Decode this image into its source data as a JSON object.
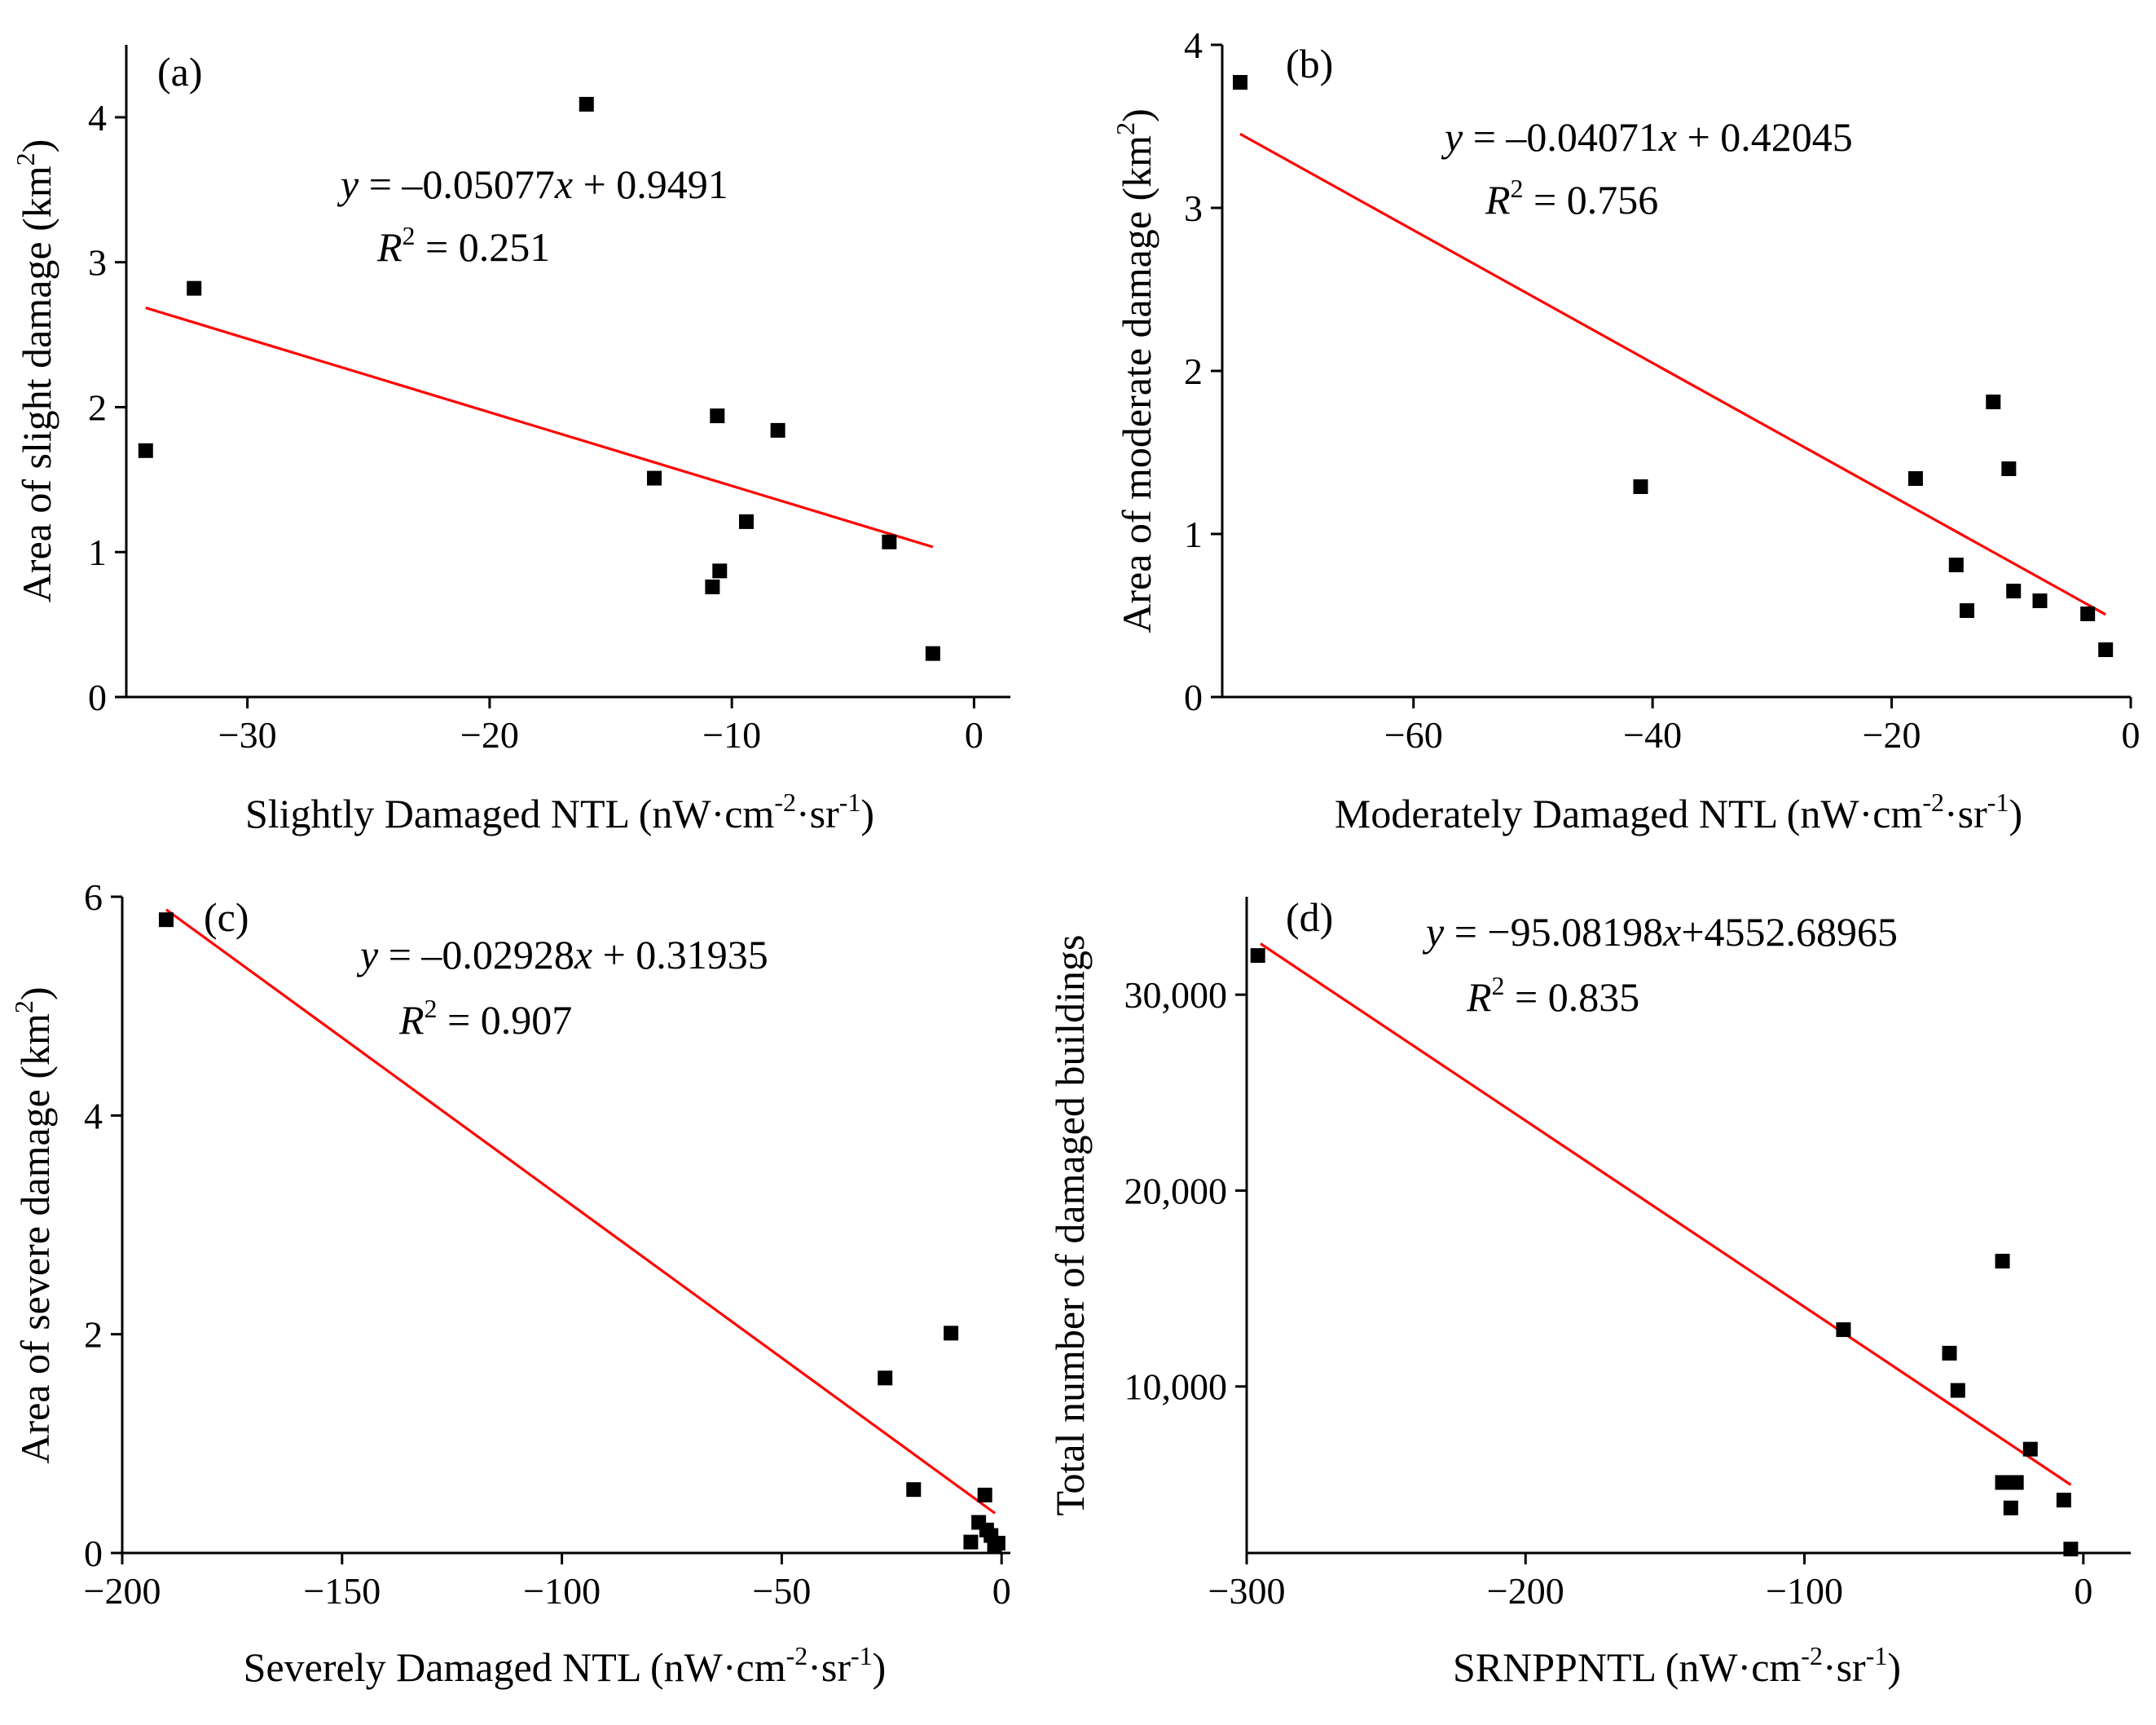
{
  "chart_data": [
    {
      "id": "a",
      "type": "scatter",
      "panel_label": "(a)",
      "xlabel": "Slightly Damaged NTL (nW·cm-2·sr-1)",
      "ylabel": "Area of slight damage (km2)",
      "xlim": [
        -35,
        1.5
      ],
      "ylim": [
        0,
        4.5
      ],
      "xticks": [
        -30,
        -20,
        -10,
        0
      ],
      "yticks": [
        0,
        1,
        2,
        3,
        4
      ],
      "points": [
        {
          "x": -34.2,
          "y": 1.7
        },
        {
          "x": -32.2,
          "y": 2.82
        },
        {
          "x": -16.0,
          "y": 4.09
        },
        {
          "x": -13.2,
          "y": 1.51
        },
        {
          "x": -10.6,
          "y": 1.94
        },
        {
          "x": -10.8,
          "y": 0.76
        },
        {
          "x": -10.5,
          "y": 0.87
        },
        {
          "x": -9.4,
          "y": 1.21
        },
        {
          "x": -8.1,
          "y": 1.84
        },
        {
          "x": -3.5,
          "y": 1.07
        },
        {
          "x": -1.7,
          "y": 0.3
        }
      ],
      "fit": {
        "slope": -0.05077,
        "intercept": 0.9491,
        "x_range": [
          -34.2,
          -1.7
        ]
      },
      "equation": {
        "y": "y",
        "rhs": " = –0.05077",
        "x": "x",
        "tail": " + 0.9491",
        "r2_label": "R",
        "r2_exp": "2",
        "r2_value": " = 0.251"
      }
    },
    {
      "id": "b",
      "type": "scatter",
      "panel_label": "(b)",
      "xlabel": "Moderately Damaged NTL (nW·cm-2·sr-1)",
      "ylabel": "Area of moderate damage (km2)",
      "xlim": [
        -76,
        0
      ],
      "ylim": [
        0,
        4
      ],
      "xticks": [
        -60,
        -40,
        -20,
        0
      ],
      "yticks": [
        0,
        1,
        2,
        3,
        4
      ],
      "points": [
        {
          "x": -74.5,
          "y": 3.77
        },
        {
          "x": -41.0,
          "y": 1.29
        },
        {
          "x": -18.0,
          "y": 1.34
        },
        {
          "x": -14.6,
          "y": 0.81
        },
        {
          "x": -13.7,
          "y": 0.53
        },
        {
          "x": -11.5,
          "y": 1.81
        },
        {
          "x": -10.2,
          "y": 1.4
        },
        {
          "x": -9.8,
          "y": 0.65
        },
        {
          "x": -7.6,
          "y": 0.59
        },
        {
          "x": -3.6,
          "y": 0.51
        },
        {
          "x": -2.1,
          "y": 0.29
        }
      ],
      "fit": {
        "slope": -0.04071,
        "intercept": 0.42045,
        "x_range": [
          -74.5,
          -2.1
        ]
      },
      "equation": {
        "y": "y",
        "rhs": " = –0.04071",
        "x": "x",
        "tail": " + 0.42045",
        "r2_label": "R",
        "r2_exp": "2",
        "r2_value": " = 0.756"
      }
    },
    {
      "id": "c",
      "type": "scatter",
      "panel_label": "(c)",
      "xlabel": "Severely Damaged NTL (nW·cm-2·sr-1)",
      "ylabel": "Area of severe damage (km2)",
      "xlim": [
        -200,
        2
      ],
      "ylim": [
        0,
        6
      ],
      "xticks": [
        -200,
        -150,
        -100,
        -50,
        0
      ],
      "yticks": [
        0,
        2,
        4,
        6
      ],
      "points": [
        {
          "x": -190.0,
          "y": 5.79
        },
        {
          "x": -26.5,
          "y": 1.6
        },
        {
          "x": -20.0,
          "y": 0.58
        },
        {
          "x": -11.5,
          "y": 2.01
        },
        {
          "x": -7.0,
          "y": 0.1
        },
        {
          "x": -5.2,
          "y": 0.28
        },
        {
          "x": -3.8,
          "y": 0.53
        },
        {
          "x": -3.4,
          "y": 0.21
        },
        {
          "x": -2.4,
          "y": 0.16
        },
        {
          "x": -1.6,
          "y": 0.07
        },
        {
          "x": -0.8,
          "y": 0.09
        }
      ],
      "fit": {
        "slope": -0.02928,
        "intercept": 0.31935,
        "x_range": [
          -190.0,
          -1.5
        ]
      },
      "equation": {
        "y": "y",
        "rhs": " = –0.02928",
        "x": "x",
        "tail": " + 0.31935",
        "r2_label": "R",
        "r2_exp": "2",
        "r2_value": " = 0.907"
      }
    },
    {
      "id": "d",
      "type": "scatter",
      "panel_label": "(d)",
      "xlabel": "SRNPPNTL (nW·cm-2·sr-1)",
      "ylabel": "Total number of damaged buildings",
      "xlim": [
        -300,
        17
      ],
      "ylim": [
        1500,
        35000
      ],
      "xticks": [
        -300,
        -200,
        -100,
        0
      ],
      "yticks": [
        10000,
        20000,
        30000
      ],
      "ytick_labels": [
        "10,000",
        "20,000",
        "30,000"
      ],
      "points": [
        {
          "x": -296.0,
          "y": 32000
        },
        {
          "x": -86.0,
          "y": 12900
        },
        {
          "x": -48.0,
          "y": 11700
        },
        {
          "x": -45.0,
          "y": 9800
        },
        {
          "x": -29.0,
          "y": 16400
        },
        {
          "x": -29.0,
          "y": 5100
        },
        {
          "x": -26.0,
          "y": 3800
        },
        {
          "x": -24.0,
          "y": 5100
        },
        {
          "x": -19.0,
          "y": 6800
        },
        {
          "x": -7.0,
          "y": 4200
        },
        {
          "x": -4.5,
          "y": 1700
        }
      ],
      "fit": {
        "slope": -95.08198,
        "intercept": 4552.68965,
        "x_range": [
          -295.0,
          -4.5
        ]
      },
      "equation": {
        "y": "y",
        "rhs": " = −95.08198",
        "x": "x",
        "tail": "+4552.68965",
        "r2_label": "R",
        "r2_exp": "2",
        "r2_value": " = 0.835"
      }
    }
  ]
}
